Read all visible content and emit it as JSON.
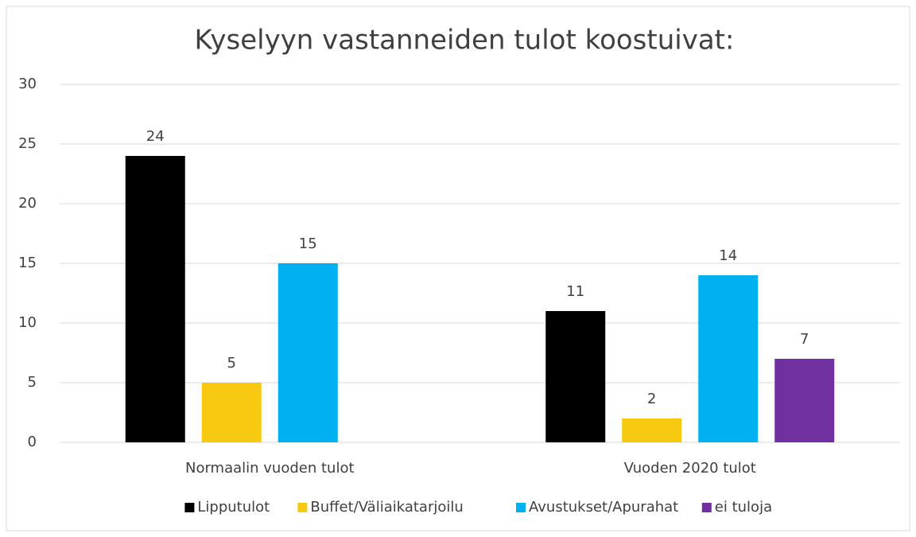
{
  "chart_data": {
    "type": "bar",
    "title": "Kyselyyn vastanneiden tulot koostuivat:",
    "categories": [
      "Normaalin vuoden tulot",
      "Vuoden 2020 tulot"
    ],
    "series": [
      {
        "name": "Lipputulot",
        "color": "#000000",
        "values": [
          24,
          11
        ]
      },
      {
        "name": "Buffet/Väliaikatarjoilu",
        "color": "#f7c911",
        "values": [
          5,
          2
        ]
      },
      {
        "name": "Avustukset/Apurahat",
        "color": "#00b0f0",
        "values": [
          15,
          14
        ]
      },
      {
        "name": "ei tuloja",
        "color": "#7030a0",
        "values": [
          null,
          7
        ]
      }
    ],
    "ylim": [
      0,
      30
    ],
    "yticks": [
      0,
      5,
      10,
      15,
      20,
      25,
      30
    ],
    "grid": true,
    "legend": "bottom"
  }
}
